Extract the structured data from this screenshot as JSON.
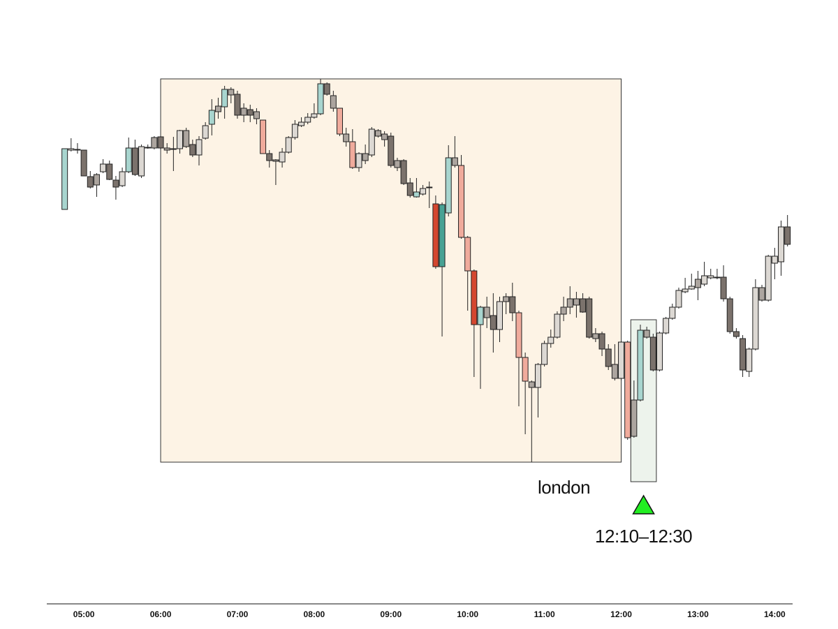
{
  "chart_data": {
    "type": "candlestick",
    "x": [
      285,
      290,
      295,
      300,
      305,
      310,
      315,
      320,
      325,
      330,
      335,
      340,
      345,
      350,
      355,
      360,
      365,
      370,
      375,
      380,
      385,
      390,
      395,
      400,
      405,
      410,
      415,
      420,
      425,
      430,
      435,
      440,
      445,
      450,
      455,
      460,
      465,
      470,
      475,
      480,
      485,
      490,
      495,
      500,
      505,
      510,
      515,
      520,
      525,
      530,
      535,
      540,
      545,
      550,
      555,
      560,
      565,
      570,
      575,
      580,
      585,
      590,
      595,
      600,
      605,
      610,
      615,
      620,
      625,
      630,
      635,
      640,
      645,
      650,
      655,
      660,
      665,
      670,
      675,
      680,
      685,
      690,
      695,
      700,
      705,
      710,
      715,
      720,
      725,
      730,
      735,
      740,
      745,
      750,
      755,
      760,
      765,
      770,
      775,
      780,
      785,
      790,
      795,
      800,
      805,
      810,
      815,
      820,
      825,
      830,
      835,
      840,
      845,
      850
    ],
    "open": [
      600,
      685,
      686,
      685,
      647,
      635,
      654,
      665,
      642,
      634,
      654,
      688,
      648,
      688,
      688,
      704,
      688,
      687,
      687,
      690,
      693,
      678,
      702,
      722,
      740,
      747,
      764,
      765,
      735,
      743,
      740,
      728,
      680,
      671,
      668,
      682,
      703,
      720,
      725,
      732,
      737,
      780,
      763,
      745,
      708,
      697,
      660,
      680,
      678,
      713,
      708,
      705,
      670,
      670,
      638,
      618,
      622,
      632,
      608,
      518,
      595,
      674,
      663,
      560,
      512,
      435,
      460,
      448,
      428,
      468,
      475,
      452,
      388,
      353,
      345,
      378,
      408,
      417,
      450,
      460,
      463,
      472,
      472,
      422,
      422,
      400,
      358,
      358,
      410,
      275,
      327,
      417,
      417,
      370,
      423,
      444,
      460,
      482,
      486,
      488,
      493,
      502,
      503,
      503,
      472,
      425,
      415,
      368,
      400,
      488,
      470,
      523,
      525,
      575
    ],
    "high": [
      687,
      702,
      695,
      685,
      655,
      652,
      672,
      670,
      648,
      660,
      703,
      700,
      693,
      693,
      705,
      705,
      695,
      704,
      714,
      717,
      700,
      705,
      725,
      758,
      760,
      777,
      775,
      770,
      752,
      750,
      745,
      728,
      685,
      672,
      688,
      705,
      728,
      732,
      738,
      752,
      787,
      782,
      770,
      745,
      717,
      715,
      682,
      693,
      718,
      715,
      712,
      710,
      674,
      672,
      645,
      645,
      635,
      640,
      620,
      610,
      692,
      705,
      678,
      562,
      514,
      462,
      475,
      480,
      475,
      480,
      495,
      455,
      395,
      355,
      380,
      412,
      428,
      454,
      475,
      490,
      482,
      480,
      475,
      430,
      425,
      407,
      407,
      412,
      412,
      355,
      435,
      432,
      422,
      425,
      446,
      465,
      488,
      502,
      508,
      512,
      525,
      515,
      515,
      520,
      475,
      430,
      420,
      402,
      500,
      492,
      535,
      545,
      584,
      592
    ],
    "low": [
      600,
      683,
      680,
      648,
      630,
      618,
      652,
      642,
      614,
      632,
      652,
      648,
      645,
      687,
      686,
      686,
      680,
      655,
      680,
      688,
      675,
      663,
      700,
      706,
      730,
      730,
      752,
      730,
      725,
      725,
      722,
      680,
      660,
      635,
      660,
      680,
      700,
      718,
      722,
      730,
      735,
      763,
      740,
      705,
      690,
      658,
      654,
      665,
      675,
      703,
      690,
      660,
      655,
      635,
      617,
      617,
      620,
      602,
      515,
      418,
      590,
      660,
      558,
      455,
      360,
      343,
      430,
      395,
      410,
      450,
      440,
      318,
      278,
      238,
      302,
      375,
      402,
      415,
      440,
      450,
      445,
      452,
      415,
      410,
      390,
      370,
      355,
      355,
      270,
      273,
      325,
      415,
      368,
      368,
      421,
      442,
      458,
      480,
      485,
      470,
      490,
      500,
      500,
      468,
      422,
      415,
      360,
      360,
      398,
      468,
      468,
      500,
      505,
      547
    ],
    "close": [
      687,
      687,
      685,
      648,
      632,
      650,
      665,
      643,
      632,
      654,
      688,
      650,
      690,
      689,
      703,
      688,
      685,
      686,
      713,
      713,
      678,
      700,
      720,
      742,
      748,
      772,
      772,
      735,
      745,
      735,
      730,
      680,
      670,
      669,
      682,
      703,
      722,
      725,
      732,
      737,
      780,
      765,
      745,
      708,
      697,
      660,
      680,
      670,
      715,
      705,
      700,
      663,
      660,
      637,
      620,
      625,
      630,
      631,
      518,
      607,
      674,
      663,
      560,
      512,
      435,
      460,
      445,
      428,
      468,
      475,
      452,
      388,
      354,
      345,
      378,
      408,
      417,
      450,
      460,
      472,
      472,
      453,
      417,
      415,
      400,
      375,
      378,
      410,
      273,
      327,
      427,
      427,
      370,
      423,
      444,
      460,
      484,
      486,
      490,
      500,
      505,
      505,
      502,
      472,
      425,
      418,
      370,
      400,
      488,
      470,
      533,
      533,
      575,
      550
    ],
    "colors": [
      "#a8d5cf",
      "#dcd8d3",
      "#aca59f",
      "#7b726c",
      "#7b726c",
      "#aca59f",
      "#dcd8d3",
      "#7b726c",
      "#7b726c",
      "#dcd8d3",
      "#a8d5cf",
      "#7b726c",
      "#dcd8d3",
      "#aca59f",
      "#aca59f",
      "#7b726c",
      "#aca59f",
      "#aca59f",
      "#dcd8d3",
      "#aca59f",
      "#7b726c",
      "#dcd8d3",
      "#dcd8d3",
      "#a8d5cf",
      "#aca59f",
      "#a8d5cf",
      "#aca59f",
      "#7b726c",
      "#aca59f",
      "#7b726c",
      "#aca59f",
      "#f0ab9c",
      "#7b726c",
      "#aca59f",
      "#dcd8d3",
      "#dcd8d3",
      "#dcd8d3",
      "#dcd8d3",
      "#dcd8d3",
      "#dcd8d3",
      "#a8d5cf",
      "#7b726c",
      "#aca59f",
      "#f0ab9c",
      "#aca59f",
      "#f0ab9c",
      "#dcd8d3",
      "#aca59f",
      "#dcd8d3",
      "#aca59f",
      "#aca59f",
      "#7b726c",
      "#aca59f",
      "#7b726c",
      "#7b726c",
      "#a8d5cf",
      "#dcd8d3",
      "#aca59f",
      "#d4472f",
      "#48a294",
      "#a8d5cf",
      "#aca59f",
      "#f0ab9c",
      "#f0ab9c",
      "#d4472f",
      "#a8d5cf",
      "#aca59f",
      "#7b726c",
      "#dcd8d3",
      "#aca59f",
      "#7b726c",
      "#f0ab9c",
      "#f0ab9c",
      "#aca59f",
      "#dcd8d3",
      "#dcd8d3",
      "#dcd8d3",
      "#dcd8d3",
      "#aca59f",
      "#aca59f",
      "#aca59f",
      "#7b726c",
      "#7b726c",
      "#aca59f",
      "#7b726c",
      "#7b726c",
      "#aca59f",
      "#dcd8d3",
      "#f0ab9c",
      "#aca59f",
      "#a8d5cf",
      "#aca59f",
      "#7b726c",
      "#dcd8d3",
      "#dcd8d3",
      "#dcd8d3",
      "#dcd8d3",
      "#dcd8d3",
      "#dcd8d3",
      "#aca59f",
      "#dcd8d3",
      "#dcd8d3",
      "#aca59f",
      "#7b726c",
      "#7b726c",
      "#7b726c",
      "#7b726c",
      "#dcd8d3",
      "#dcd8d3",
      "#aca59f",
      "#dcd8d3",
      "#dcd8d3",
      "#dcd8d3",
      "#7b726c"
    ],
    "xlim": [
      271,
      854
    ],
    "xticks": [
      {
        "value": 300,
        "label": "05:00"
      },
      {
        "value": 360,
        "label": "06:00"
      },
      {
        "value": 420,
        "label": "07:00"
      },
      {
        "value": 480,
        "label": "08:00"
      },
      {
        "value": 540,
        "label": "09:00"
      },
      {
        "value": 600,
        "label": "10:00"
      },
      {
        "value": 660,
        "label": "11:00"
      },
      {
        "value": 720,
        "label": "12:00"
      },
      {
        "value": 780,
        "label": "13:00"
      },
      {
        "value": 840,
        "label": "14:00"
      }
    ],
    "annotations": [
      {
        "label": "london",
        "x": [
          360,
          720
        ],
        "y": [
          238,
          787
        ],
        "color": "#fdf3e5"
      },
      {
        "label": "12:10–12:30",
        "x": [
          730,
          750
        ],
        "y": [
          210,
          442
        ],
        "color": "#edf3ec",
        "marker_color": "#22ee22"
      }
    ]
  }
}
